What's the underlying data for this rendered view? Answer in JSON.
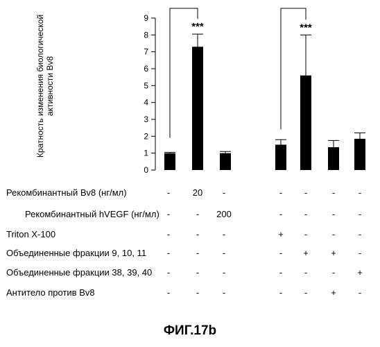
{
  "chart_data": {
    "type": "bar",
    "ylabel": "Кратность изменения биологической активности Bv8",
    "ylim": [
      0,
      9
    ],
    "yticks": [
      0,
      1,
      2,
      3,
      4,
      5,
      6,
      7,
      8,
      9
    ],
    "grid": false,
    "groups": [
      {
        "values": [
          1.0,
          7.3,
          1.0
        ],
        "errors": [
          0.05,
          0.75,
          0.1
        ]
      },
      {
        "values": [
          1.5,
          5.6,
          1.35,
          1.85
        ],
        "errors": [
          0.3,
          2.4,
          0.4,
          0.35
        ]
      }
    ],
    "annotations": [
      {
        "text": "***",
        "group": 0,
        "bar": 1
      },
      {
        "text": "***",
        "group": 1,
        "bar": 1
      }
    ],
    "brackets": [
      {
        "group": 0,
        "from_bar": 0,
        "to_bar": 1
      },
      {
        "group": 1,
        "from_bar": 0,
        "to_bar": 1
      }
    ]
  },
  "table": {
    "rows": [
      {
        "label": "Рекомбинантный Bv8 (нг/мл)",
        "cells": [
          "-",
          "20",
          "-",
          "-",
          "-",
          "-",
          "-"
        ]
      },
      {
        "label": "Рекомбинантный hVEGF (нг/мл)",
        "cells": [
          "-",
          "-",
          "200",
          "-",
          "-",
          "-",
          "-"
        ]
      },
      {
        "label": "Triton X-100",
        "cells": [
          "-",
          "-",
          "-",
          "+",
          "-",
          "-",
          "-"
        ]
      },
      {
        "label": "Объединенные фракции 9, 10, 11",
        "cells": [
          "-",
          "-",
          "-",
          "-",
          "+",
          "+",
          "-"
        ]
      },
      {
        "label": "Объединенные фракции 38, 39, 40",
        "cells": [
          "-",
          "-",
          "-",
          "-",
          "-",
          "-",
          "+"
        ]
      },
      {
        "label": "Антитело против Bv8",
        "cells": [
          "-",
          "-",
          "-",
          "-",
          "-",
          "+",
          "-"
        ]
      }
    ]
  },
  "caption": "ФИГ.17b"
}
